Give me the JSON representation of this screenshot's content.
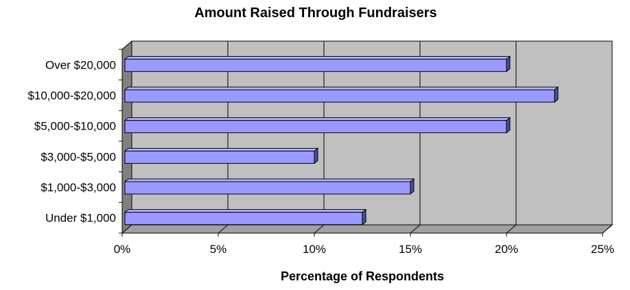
{
  "chart_data": {
    "type": "bar",
    "orientation": "horizontal",
    "style": "3d",
    "title": "Amount Raised Through Fundraisers",
    "xlabel": "Percentage of Respondents",
    "ylabel": "",
    "categories": [
      "Over $20,000",
      "$10,000-$20,000",
      "$5,000-$10,000",
      "$3,000-$5,000",
      "$1,000-$3,000",
      "Under $1,000"
    ],
    "values": [
      20,
      22.5,
      20,
      10,
      15,
      12.5
    ],
    "xlim": [
      0,
      25
    ],
    "ticks": [
      0,
      5,
      10,
      15,
      20,
      25
    ],
    "tick_labels": [
      "0%",
      "5%",
      "10%",
      "15%",
      "20%",
      "25%"
    ],
    "grid": true,
    "legend": "none",
    "colors": {
      "bar_front": "#9999ff",
      "bar_top": "#b3b3ff",
      "bar_side": "#4b4b9e",
      "plot_back": "#c0c0c0",
      "plot_wall": "#808080",
      "plot_floor": "#a0a0a0"
    }
  }
}
